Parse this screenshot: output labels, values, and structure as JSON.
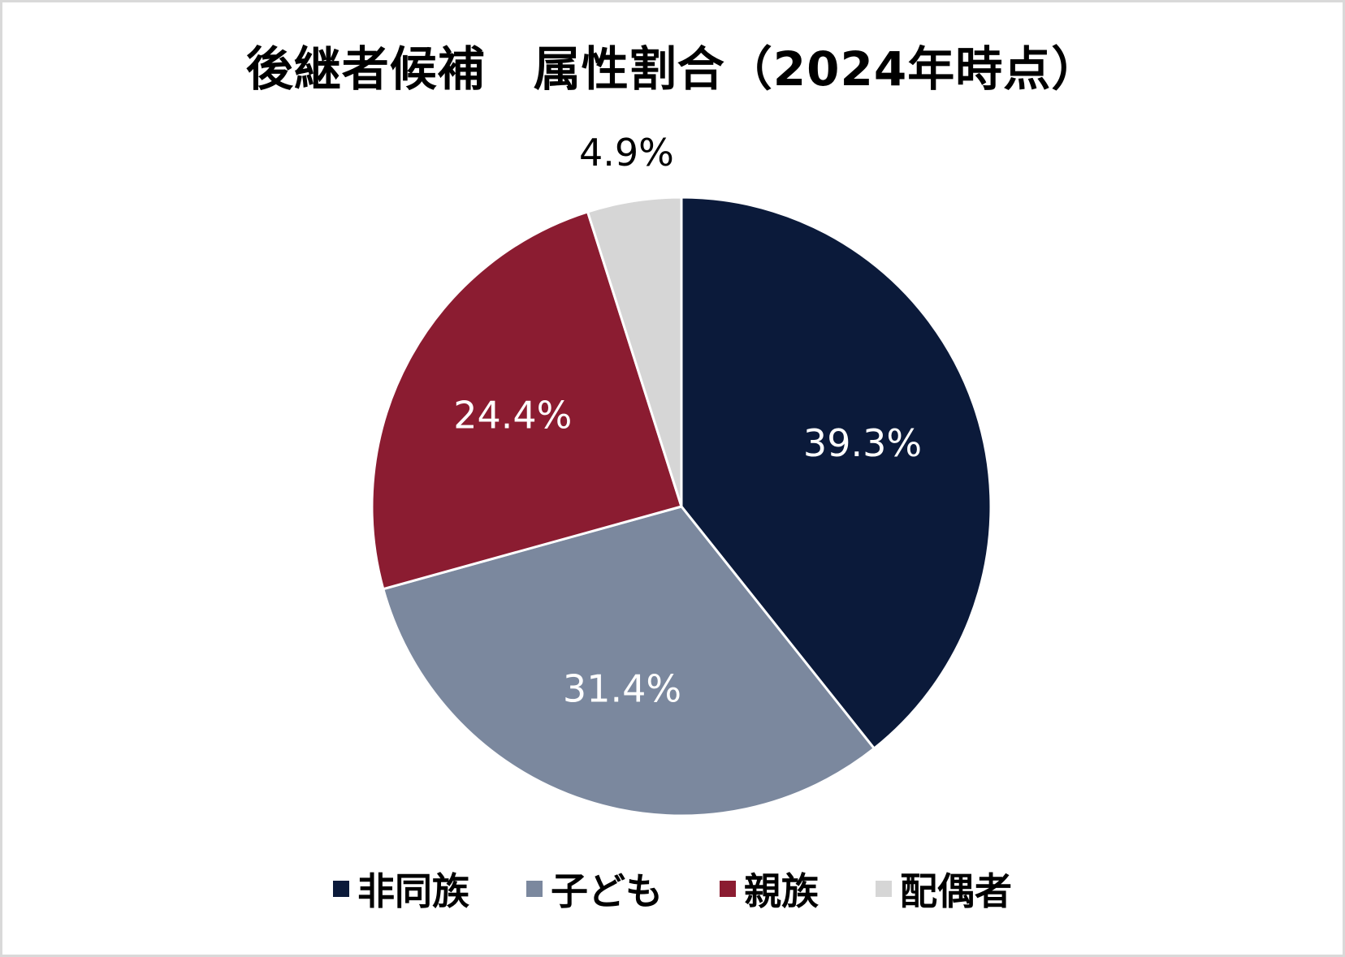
{
  "chart_data": {
    "type": "pie",
    "title": "後継者候補　属性割合（2024年時点）",
    "categories": [
      "非同族",
      "子ども",
      "親族",
      "配偶者"
    ],
    "values": [
      39.3,
      31.4,
      24.4,
      4.9
    ],
    "labels": [
      "39.3%",
      "31.4%",
      "24.4%",
      "4.9%"
    ],
    "colors": [
      "#0b1a3a",
      "#7b889e",
      "#8b1c31",
      "#d6d6d6"
    ],
    "legend_position": "bottom",
    "start_angle": "12 o'clock, clockwise"
  },
  "title": "後継者候補　属性割合（2024年時点）",
  "legend": [
    {
      "label": "非同族",
      "color": "#0b1a3a"
    },
    {
      "label": "子ども",
      "color": "#7b889e"
    },
    {
      "label": "親族",
      "color": "#8b1c31"
    },
    {
      "label": "配偶者",
      "color": "#d6d6d6"
    }
  ],
  "slice_labels": [
    "39.3%",
    "31.4%",
    "24.4%",
    "4.9%"
  ]
}
